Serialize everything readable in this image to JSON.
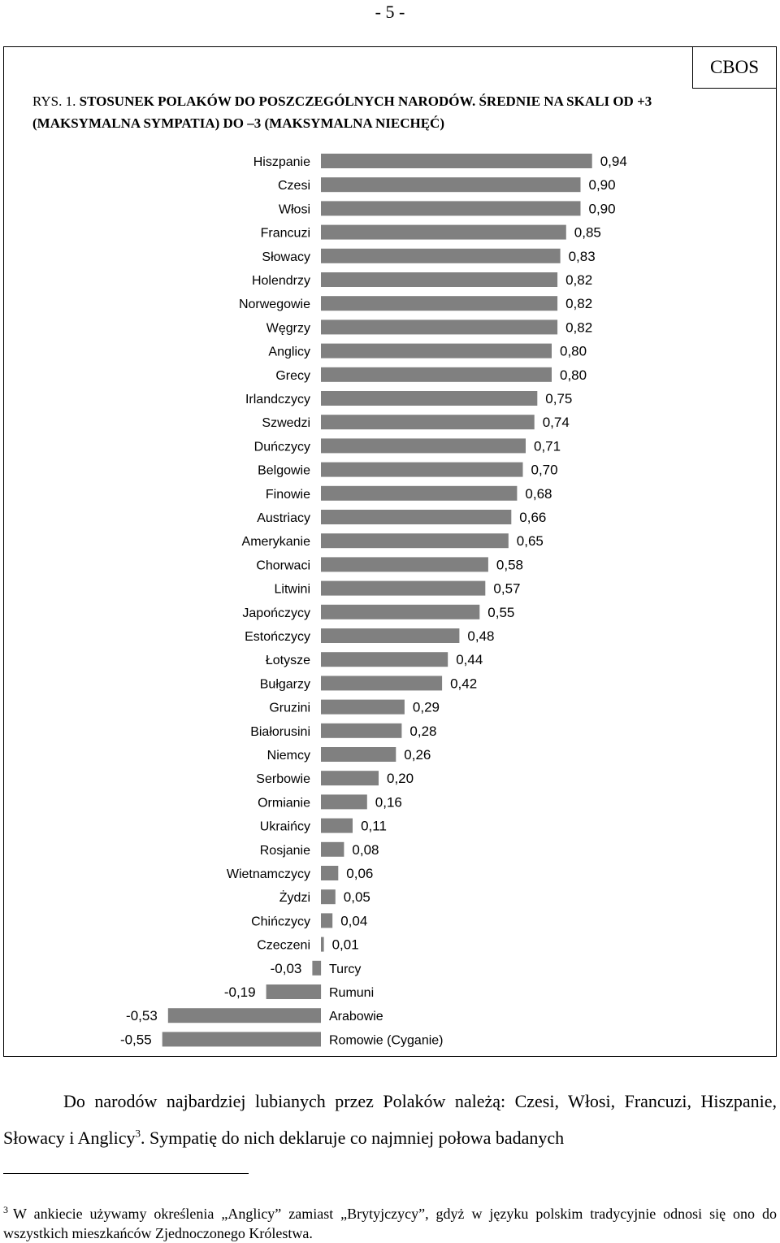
{
  "page_number": "- 5 -",
  "source_badge": "CBOS",
  "figure": {
    "title_lead": "RYS. 1. ",
    "title_bold": "STOSUNEK POLAKÓW DO POSZCZEGÓLNYCH NARODÓW. ŚREDNIE NA SKALI OD +3 (MAKSYMALNA SYMPATIA) DO –3 (MAKSYMALNA NIECHĘĆ)"
  },
  "chart_data": {
    "type": "bar",
    "orientation": "horizontal",
    "bar_color": "#808080",
    "categories": [
      "Hiszpanie",
      "Czesi",
      "Włosi",
      "Francuzi",
      "Słowacy",
      "Holendrzy",
      "Norwegowie",
      "Węgrzy",
      "Anglicy",
      "Grecy",
      "Irlandczycy",
      "Szwedzi",
      "Duńczycy",
      "Belgowie",
      "Finowie",
      "Austriacy",
      "Amerykanie",
      "Chorwaci",
      "Litwini",
      "Japończycy",
      "Estończycy",
      "Łotysze",
      "Bułgarzy",
      "Gruzini",
      "Białorusini",
      "Niemcy",
      "Serbowie",
      "Ormianie",
      "Ukraińcy",
      "Rosjanie",
      "Wietnamczycy",
      "Żydzi",
      "Chińczycy",
      "Czeczeni",
      "Turcy",
      "Rumuni",
      "Arabowie",
      "Romowie (Cyganie)"
    ],
    "values": [
      0.94,
      0.9,
      0.9,
      0.85,
      0.83,
      0.82,
      0.82,
      0.82,
      0.8,
      0.8,
      0.75,
      0.74,
      0.71,
      0.7,
      0.68,
      0.66,
      0.65,
      0.58,
      0.57,
      0.55,
      0.48,
      0.44,
      0.42,
      0.29,
      0.28,
      0.26,
      0.2,
      0.16,
      0.11,
      0.08,
      0.06,
      0.05,
      0.04,
      0.01,
      -0.03,
      -0.19,
      -0.53,
      -0.55
    ],
    "value_labels": [
      "0,94",
      "0,90",
      "0,90",
      "0,85",
      "0,83",
      "0,82",
      "0,82",
      "0,82",
      "0,80",
      "0,80",
      "0,75",
      "0,74",
      "0,71",
      "0,70",
      "0,68",
      "0,66",
      "0,65",
      "0,58",
      "0,57",
      "0,55",
      "0,48",
      "0,44",
      "0,42",
      "0,29",
      "0,28",
      "0,26",
      "0,20",
      "0,16",
      "0,11",
      "0,08",
      "0,06",
      "0,05",
      "0,04",
      "0,01",
      "-0,03",
      "-0,19",
      "-0,53",
      "-0,55"
    ]
  },
  "body": {
    "paragraph": "Do narodów najbardziej lubianych przez Polaków należą: Czesi, Włosi, Francuzi, Hiszpanie, Słowacy i Anglicy",
    "footnote_ref": "3",
    "paragraph_after": ". Sympatię do nich deklaruje co najmniej połowa badanych"
  },
  "footnote": {
    "marker": "3",
    "text": "W ankiecie używamy określenia „Anglicy” zamiast „Brytyjczycy”, gdyż w języku polskim tradycyjnie odnosi się ono do wszystkich mieszkańców Zjednoczonego Królestwa."
  }
}
